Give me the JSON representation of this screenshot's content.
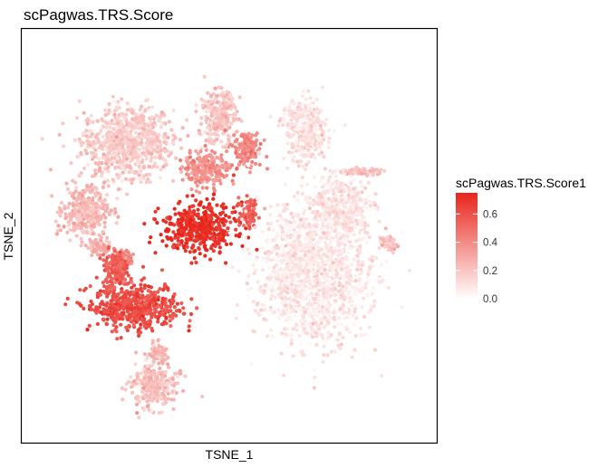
{
  "chart_data": {
    "type": "scatter",
    "title": "scPagwas.TRS.Score",
    "xlabel": "TSNE_1",
    "ylabel": "TSNE_2",
    "grid": false,
    "legend": {
      "title": "scPagwas.TRS.Score1",
      "placement": "right",
      "ticks": [
        "0.0",
        "0.2",
        "0.4",
        "0.6"
      ],
      "range": [
        0.0,
        0.75
      ]
    },
    "color_low": "#FFFFFF",
    "color_high": "#E8251B",
    "clusters": [
      {
        "name": "top-left-large",
        "center": [
          -27,
          25
        ],
        "spread": [
          10,
          8
        ],
        "score": 0.18
      },
      {
        "name": "left-mid",
        "center": [
          -38,
          6
        ],
        "spread": [
          5,
          6
        ],
        "score": 0.23
      },
      {
        "name": "left-small-1",
        "center": [
          -34,
          -3
        ],
        "spread": [
          2.5,
          1.5
        ],
        "score": 0.28
      },
      {
        "name": "left-small-2",
        "center": [
          -28,
          -6
        ],
        "spread": [
          2,
          2
        ],
        "score": 0.42
      },
      {
        "name": "bottom-left-red",
        "center": [
          -25,
          -19
        ],
        "spread": [
          10,
          5
        ],
        "score": 0.62
      },
      {
        "name": "lower-left-red",
        "center": [
          -30,
          -9
        ],
        "spread": [
          3,
          4
        ],
        "score": 0.55
      },
      {
        "name": "center-core-red",
        "center": [
          -8,
          2
        ],
        "spread": [
          8,
          5.5
        ],
        "score": 0.72
      },
      {
        "name": "center-right-arm",
        "center": [
          5,
          6
        ],
        "spread": [
          2,
          3
        ],
        "score": 0.55
      },
      {
        "name": "upper-center",
        "center": [
          -6,
          18
        ],
        "spread": [
          5,
          4
        ],
        "score": 0.38
      },
      {
        "name": "upper-center-top",
        "center": [
          -3,
          32
        ],
        "spread": [
          4,
          6
        ],
        "score": 0.2
      },
      {
        "name": "upper-mid-red",
        "center": [
          5,
          23
        ],
        "spread": [
          3,
          4
        ],
        "score": 0.42
      },
      {
        "name": "top-right",
        "center": [
          20,
          28
        ],
        "spread": [
          5,
          7
        ],
        "score": 0.1
      },
      {
        "name": "right-large",
        "center": [
          22,
          -10
        ],
        "spread": [
          12,
          15
        ],
        "score": 0.08
      },
      {
        "name": "right-mid",
        "center": [
          30,
          8
        ],
        "spread": [
          6,
          6
        ],
        "score": 0.1
      },
      {
        "name": "far-right",
        "center": [
          42,
          -2
        ],
        "spread": [
          2,
          2
        ],
        "score": 0.2
      },
      {
        "name": "bottom-left-blob",
        "center": [
          -20,
          -40
        ],
        "spread": [
          5,
          5
        ],
        "score": 0.22
      },
      {
        "name": "bottom-left-small",
        "center": [
          -19,
          -31
        ],
        "spread": [
          2,
          2
        ],
        "score": 0.25
      },
      {
        "name": "right-top-streak",
        "center": [
          35,
          17
        ],
        "spread": [
          4,
          0.8
        ],
        "score": 0.2
      }
    ]
  }
}
